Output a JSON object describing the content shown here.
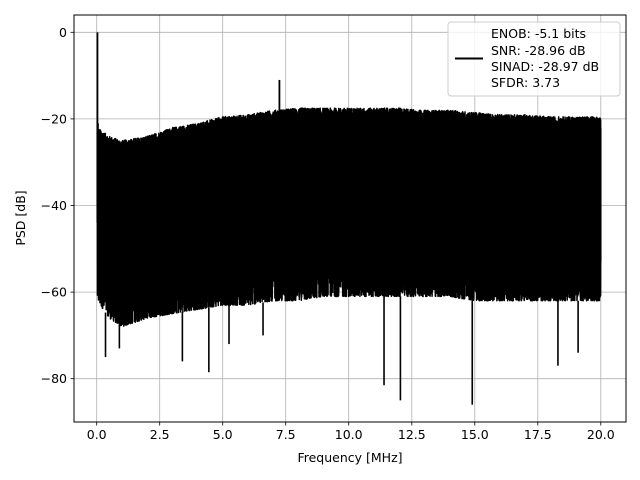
{
  "chart_data": {
    "type": "line",
    "title": "",
    "xlabel": "Frequency [MHz]",
    "ylabel": "PSD [dB]",
    "xlim": [
      -0.9,
      21.0
    ],
    "ylim": [
      -90,
      4
    ],
    "xticks": [
      0,
      2.5,
      5,
      7.5,
      10,
      12.5,
      15,
      17.5,
      20
    ],
    "xtick_labels": [
      "0.0",
      "2.5",
      "5.0",
      "7.5",
      "10.0",
      "12.5",
      "15.0",
      "17.5",
      "20.0"
    ],
    "yticks": [
      0,
      -20,
      -40,
      -60,
      -80
    ],
    "ytick_labels": [
      "0",
      "−20",
      "−40",
      "−60",
      "−80"
    ],
    "grid": true,
    "legend_position": "top-right",
    "series": [
      {
        "color": "#000000",
        "envelope": {
          "x": [
            0.03,
            0.5,
            1.0,
            2.0,
            3.0,
            4.0,
            5.0,
            6.0,
            7.0,
            8.0,
            9.0,
            10.0,
            11.0,
            12.0,
            13.0,
            14.0,
            15.0,
            16.0,
            17.0,
            18.0,
            19.0,
            20.0
          ],
          "upper": [
            -22,
            -24,
            -25,
            -24,
            -22,
            -21,
            -19.5,
            -19,
            -18,
            -17.5,
            -17.5,
            -17.5,
            -17.5,
            -17.5,
            -18,
            -18,
            -18.5,
            -19,
            -19,
            -19.5,
            -19.5,
            -19.5
          ],
          "lower": [
            -62,
            -66,
            -68,
            -66,
            -65,
            -64,
            -63,
            -63,
            -62,
            -62,
            -61,
            -61,
            -61,
            -61,
            -61,
            -61,
            -62,
            -62,
            -62,
            -62,
            -62,
            -62
          ]
        },
        "peaks": [
          {
            "x": 0.03,
            "y": 0
          },
          {
            "x": 0.05,
            "y": -21
          },
          {
            "x": 7.25,
            "y": -11
          }
        ],
        "dips": [
          {
            "x": 0.35,
            "y": -75
          },
          {
            "x": 0.9,
            "y": -73
          },
          {
            "x": 3.4,
            "y": -76
          },
          {
            "x": 4.45,
            "y": -78.5
          },
          {
            "x": 5.25,
            "y": -72
          },
          {
            "x": 6.6,
            "y": -70
          },
          {
            "x": 11.4,
            "y": -81.5
          },
          {
            "x": 12.05,
            "y": -85
          },
          {
            "x": 14.9,
            "y": -86
          },
          {
            "x": 18.3,
            "y": -77
          },
          {
            "x": 19.1,
            "y": -74
          }
        ]
      }
    ],
    "legend": {
      "lines": [
        "ENOB: -5.1 bits",
        "SNR: -28.96 dB",
        "SINAD: -28.97 dB",
        "SFDR: 3.73"
      ]
    }
  }
}
